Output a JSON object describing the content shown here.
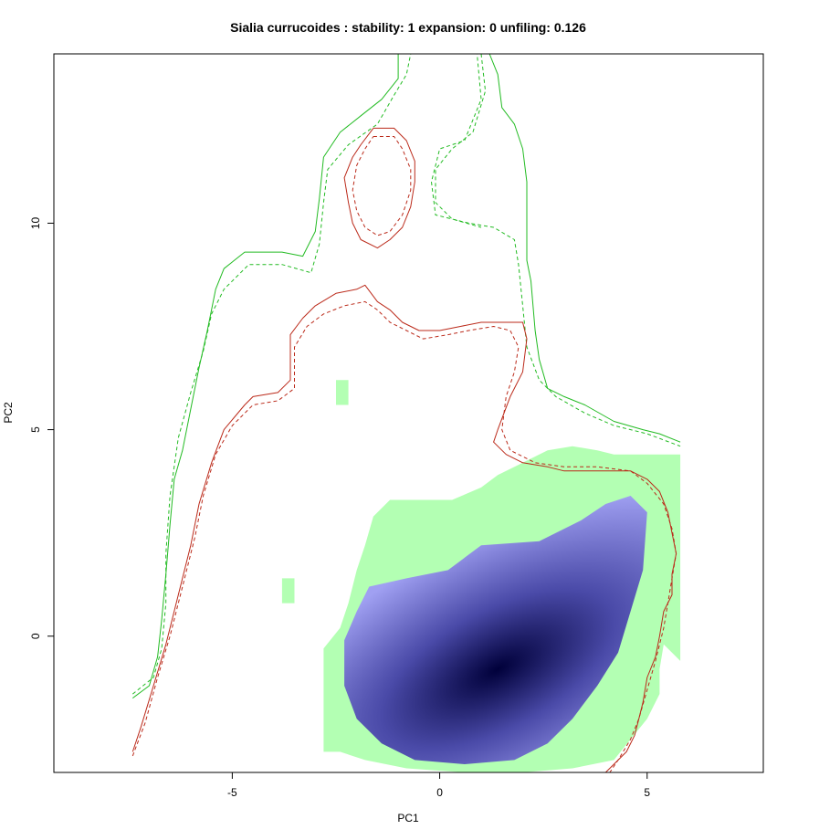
{
  "chart_data": {
    "type": "heatmap",
    "title": "Sialia currucoides : stability: 1 expansion: 0 unfiling: 0.126",
    "xlabel": "PC1",
    "ylabel": "PC2",
    "xlim": [
      -9.3,
      7.8
    ],
    "ylim": [
      -3.3,
      14.1
    ],
    "xticks": [
      -5,
      0,
      5
    ],
    "yticks": [
      0,
      5,
      10
    ],
    "xtick_labels": [
      "-5",
      "0",
      "5"
    ],
    "ytick_labels": [
      "0",
      "5",
      "10"
    ],
    "grid": false,
    "legend": "none",
    "colors": {
      "stability_fill": "#b3ffb3",
      "density_light": "#a0a0f2",
      "density_dark": "#00003a",
      "green_contour": "#22bb22",
      "red_contour": "#bb2a1a"
    },
    "density_peak": {
      "x": 1.4,
      "y": -0.8
    },
    "series": [
      {
        "kind": "stability_region",
        "polygon": [
          [
            -2.8,
            -2.8
          ],
          [
            -2.8,
            -0.3
          ],
          [
            -2.4,
            0.2
          ],
          [
            -2.2,
            0.8
          ],
          [
            -2.0,
            1.6
          ],
          [
            -1.8,
            2.2
          ],
          [
            -1.6,
            2.9
          ],
          [
            -1.2,
            3.3
          ],
          [
            0.3,
            3.3
          ],
          [
            1.0,
            3.6
          ],
          [
            1.4,
            3.9
          ],
          [
            2.0,
            4.2
          ],
          [
            2.6,
            4.5
          ],
          [
            3.2,
            4.6
          ],
          [
            3.8,
            4.5
          ],
          [
            4.2,
            4.4
          ],
          [
            4.6,
            4.4
          ],
          [
            5.2,
            4.4
          ],
          [
            5.8,
            4.4
          ],
          [
            5.8,
            -0.6
          ],
          [
            5.4,
            -0.2
          ],
          [
            5.3,
            -0.8
          ],
          [
            5.3,
            -1.4
          ],
          [
            5.0,
            -2.0
          ],
          [
            4.6,
            -2.5
          ],
          [
            4.2,
            -3.0
          ],
          [
            3.2,
            -3.2
          ],
          [
            2.0,
            -3.3
          ],
          [
            0.6,
            -3.3
          ],
          [
            -0.8,
            -3.2
          ],
          [
            -1.8,
            -3.0
          ],
          [
            -2.4,
            -2.8
          ]
        ]
      },
      {
        "kind": "stability_patch",
        "polygon": [
          [
            -2.5,
            6.2
          ],
          [
            -2.2,
            6.2
          ],
          [
            -2.2,
            5.6
          ],
          [
            -2.5,
            5.6
          ]
        ]
      },
      {
        "kind": "stability_patch",
        "polygon": [
          [
            -3.8,
            1.4
          ],
          [
            -3.5,
            1.4
          ],
          [
            -3.5,
            0.8
          ],
          [
            -3.8,
            0.8
          ]
        ]
      },
      {
        "kind": "density",
        "polygon": [
          [
            -2.3,
            -1.2
          ],
          [
            -2.3,
            -0.1
          ],
          [
            -2.0,
            0.6
          ],
          [
            -1.7,
            1.2
          ],
          [
            -0.8,
            1.4
          ],
          [
            0.2,
            1.6
          ],
          [
            1.0,
            2.2
          ],
          [
            2.4,
            2.3
          ],
          [
            3.4,
            2.8
          ],
          [
            4.0,
            3.2
          ],
          [
            4.6,
            3.4
          ],
          [
            5.0,
            3.0
          ],
          [
            4.9,
            1.6
          ],
          [
            4.6,
            0.6
          ],
          [
            4.3,
            -0.4
          ],
          [
            3.8,
            -1.2
          ],
          [
            3.2,
            -2.0
          ],
          [
            2.6,
            -2.6
          ],
          [
            1.8,
            -3.0
          ],
          [
            0.6,
            -3.1
          ],
          [
            -0.6,
            -3.0
          ],
          [
            -1.4,
            -2.6
          ],
          [
            -2.0,
            -2.0
          ]
        ]
      },
      {
        "kind": "green_solid",
        "path": [
          [
            -7.4,
            -1.5
          ],
          [
            -7.0,
            -1.2
          ],
          [
            -6.8,
            -0.5
          ],
          [
            -6.7,
            0.4
          ],
          [
            -6.6,
            1.5
          ],
          [
            -6.5,
            2.7
          ],
          [
            -6.4,
            3.8
          ],
          [
            -6.2,
            4.5
          ],
          [
            -6.0,
            5.5
          ],
          [
            -5.8,
            6.5
          ],
          [
            -5.6,
            7.4
          ],
          [
            -5.4,
            8.4
          ],
          [
            -5.2,
            8.9
          ],
          [
            -4.7,
            9.3
          ],
          [
            -3.8,
            9.3
          ],
          [
            -3.3,
            9.2
          ],
          [
            -3.0,
            9.8
          ],
          [
            -2.9,
            10.6
          ],
          [
            -2.8,
            11.6
          ],
          [
            -2.4,
            12.2
          ],
          [
            -1.9,
            12.6
          ],
          [
            -1.4,
            13.0
          ],
          [
            -1.0,
            13.5
          ],
          [
            -1.0,
            14.1
          ],
          [
            1.2,
            14.1
          ],
          [
            1.4,
            13.6
          ],
          [
            1.5,
            12.8
          ],
          [
            1.8,
            12.4
          ],
          [
            2.0,
            11.8
          ],
          [
            2.1,
            11.0
          ],
          [
            2.1,
            10.0
          ],
          [
            2.1,
            9.1
          ],
          [
            2.2,
            8.6
          ],
          [
            2.3,
            7.4
          ],
          [
            2.4,
            6.7
          ],
          [
            2.6,
            6.0
          ],
          [
            3.0,
            5.8
          ],
          [
            3.5,
            5.6
          ],
          [
            4.2,
            5.2
          ],
          [
            4.9,
            5.0
          ],
          [
            5.3,
            4.9
          ],
          [
            5.8,
            4.7
          ]
        ]
      },
      {
        "kind": "green_dashed",
        "path": [
          [
            -7.4,
            -1.4
          ],
          [
            -6.9,
            -1.0
          ],
          [
            -6.7,
            -0.3
          ],
          [
            -6.6,
            0.8
          ],
          [
            -6.6,
            2.0
          ],
          [
            -6.5,
            3.4
          ],
          [
            -6.3,
            4.8
          ],
          [
            -6.0,
            5.9
          ],
          [
            -5.7,
            6.9
          ],
          [
            -5.5,
            7.8
          ],
          [
            -5.2,
            8.4
          ],
          [
            -4.6,
            9.0
          ],
          [
            -3.8,
            9.0
          ],
          [
            -3.1,
            8.8
          ],
          [
            -2.9,
            9.5
          ],
          [
            -2.8,
            10.5
          ],
          [
            -2.7,
            11.3
          ],
          [
            -2.2,
            11.9
          ],
          [
            -1.5,
            12.4
          ],
          [
            -1.1,
            13.1
          ],
          [
            -0.8,
            13.6
          ],
          [
            -0.7,
            14.1
          ],
          [
            0.9,
            14.1
          ],
          [
            1.0,
            13.0
          ],
          [
            0.6,
            12.0
          ],
          [
            0.0,
            11.8
          ],
          [
            -0.2,
            11.0
          ],
          [
            -0.1,
            10.2
          ],
          [
            0.7,
            10.0
          ],
          [
            1.3,
            9.9
          ],
          [
            1.8,
            9.6
          ],
          [
            1.9,
            9.0
          ],
          [
            2.0,
            8.0
          ],
          [
            2.1,
            7.0
          ],
          [
            2.4,
            6.2
          ],
          [
            2.8,
            5.8
          ],
          [
            3.5,
            5.4
          ],
          [
            4.2,
            5.1
          ],
          [
            5.0,
            4.9
          ],
          [
            5.8,
            4.6
          ]
        ]
      },
      {
        "kind": "green_dashed",
        "path": [
          [
            1.0,
            14.1
          ],
          [
            1.1,
            13.2
          ],
          [
            0.8,
            12.2
          ],
          [
            0.3,
            11.8
          ],
          [
            -0.1,
            11.3
          ],
          [
            -0.1,
            10.5
          ],
          [
            0.3,
            10.1
          ],
          [
            1.0,
            9.9
          ]
        ]
      },
      {
        "kind": "red_solid",
        "path": [
          [
            -7.4,
            -2.8
          ],
          [
            -7.2,
            -2.2
          ],
          [
            -6.9,
            -1.2
          ],
          [
            -6.6,
            -0.2
          ],
          [
            -6.3,
            1.0
          ],
          [
            -6.0,
            2.2
          ],
          [
            -5.8,
            3.2
          ],
          [
            -5.5,
            4.2
          ],
          [
            -5.2,
            5.0
          ],
          [
            -4.7,
            5.6
          ],
          [
            -4.5,
            5.8
          ],
          [
            -3.9,
            5.9
          ],
          [
            -3.6,
            6.2
          ],
          [
            -3.6,
            7.3
          ],
          [
            -3.3,
            7.7
          ],
          [
            -3.0,
            8.0
          ],
          [
            -2.5,
            8.3
          ],
          [
            -2.0,
            8.4
          ],
          [
            -1.8,
            8.5
          ],
          [
            -1.5,
            8.1
          ],
          [
            -1.2,
            7.9
          ],
          [
            -0.9,
            7.6
          ],
          [
            -0.5,
            7.4
          ],
          [
            0.0,
            7.4
          ],
          [
            0.5,
            7.5
          ],
          [
            1.0,
            7.6
          ],
          [
            1.6,
            7.6
          ],
          [
            2.0,
            7.6
          ],
          [
            2.1,
            7.2
          ],
          [
            2.0,
            6.4
          ],
          [
            1.7,
            5.8
          ],
          [
            1.4,
            5.0
          ],
          [
            1.3,
            4.7
          ],
          [
            1.6,
            4.4
          ],
          [
            2.0,
            4.2
          ],
          [
            2.6,
            4.1
          ],
          [
            3.0,
            4.0
          ],
          [
            3.8,
            4.0
          ],
          [
            4.6,
            4.0
          ],
          [
            5.0,
            3.8
          ],
          [
            5.3,
            3.5
          ],
          [
            5.5,
            3.0
          ],
          [
            5.6,
            2.5
          ],
          [
            5.7,
            2.0
          ],
          [
            5.6,
            1.5
          ],
          [
            5.6,
            1.0
          ],
          [
            5.4,
            0.6
          ],
          [
            5.3,
            0.0
          ],
          [
            5.2,
            -0.5
          ],
          [
            5.0,
            -1.0
          ],
          [
            4.9,
            -1.6
          ],
          [
            4.8,
            -2.0
          ],
          [
            4.7,
            -2.4
          ],
          [
            4.5,
            -2.8
          ],
          [
            4.2,
            -3.1
          ],
          [
            4.0,
            -3.3
          ]
        ]
      },
      {
        "kind": "red_dashed",
        "path": [
          [
            -7.4,
            -2.9
          ],
          [
            -7.1,
            -2.1
          ],
          [
            -6.8,
            -1.0
          ],
          [
            -6.5,
            0.0
          ],
          [
            -6.2,
            1.2
          ],
          [
            -5.9,
            2.4
          ],
          [
            -5.7,
            3.4
          ],
          [
            -5.4,
            4.4
          ],
          [
            -5.0,
            5.1
          ],
          [
            -4.5,
            5.6
          ],
          [
            -3.9,
            5.7
          ],
          [
            -3.5,
            6.0
          ],
          [
            -3.5,
            7.0
          ],
          [
            -3.2,
            7.5
          ],
          [
            -2.8,
            7.8
          ],
          [
            -2.3,
            8.0
          ],
          [
            -1.8,
            8.1
          ],
          [
            -1.5,
            7.9
          ],
          [
            -1.2,
            7.6
          ],
          [
            -0.8,
            7.4
          ],
          [
            -0.4,
            7.2
          ],
          [
            0.2,
            7.3
          ],
          [
            0.7,
            7.4
          ],
          [
            1.3,
            7.5
          ],
          [
            1.7,
            7.4
          ],
          [
            1.9,
            7.0
          ],
          [
            1.8,
            6.4
          ],
          [
            1.6,
            5.8
          ],
          [
            1.5,
            5.0
          ],
          [
            1.7,
            4.5
          ],
          [
            2.3,
            4.2
          ],
          [
            3.0,
            4.1
          ],
          [
            3.8,
            4.1
          ],
          [
            4.6,
            4.0
          ],
          [
            5.0,
            3.7
          ],
          [
            5.4,
            3.2
          ],
          [
            5.6,
            2.6
          ],
          [
            5.7,
            2.0
          ],
          [
            5.6,
            1.4
          ],
          [
            5.5,
            0.8
          ],
          [
            5.4,
            0.2
          ],
          [
            5.2,
            -0.6
          ],
          [
            5.0,
            -1.3
          ],
          [
            4.8,
            -2.0
          ],
          [
            4.6,
            -2.5
          ],
          [
            4.3,
            -3.0
          ],
          [
            4.1,
            -3.3
          ]
        ]
      },
      {
        "kind": "red_solid",
        "path": [
          [
            -1.6,
            12.3
          ],
          [
            -1.1,
            12.3
          ],
          [
            -0.8,
            12.0
          ],
          [
            -0.6,
            11.5
          ],
          [
            -0.6,
            11.0
          ],
          [
            -0.7,
            10.4
          ],
          [
            -0.9,
            9.9
          ],
          [
            -1.2,
            9.6
          ],
          [
            -1.5,
            9.4
          ],
          [
            -1.9,
            9.6
          ],
          [
            -2.1,
            10.0
          ],
          [
            -2.2,
            10.5
          ],
          [
            -2.3,
            11.1
          ],
          [
            -2.1,
            11.6
          ],
          [
            -1.9,
            11.9
          ],
          [
            -1.6,
            12.3
          ]
        ]
      },
      {
        "kind": "red_dashed",
        "path": [
          [
            -1.6,
            12.1
          ],
          [
            -1.1,
            12.1
          ],
          [
            -0.9,
            11.8
          ],
          [
            -0.7,
            11.3
          ],
          [
            -0.7,
            10.8
          ],
          [
            -0.9,
            10.2
          ],
          [
            -1.2,
            9.8
          ],
          [
            -1.5,
            9.7
          ],
          [
            -1.8,
            9.9
          ],
          [
            -2.0,
            10.3
          ],
          [
            -2.1,
            10.8
          ],
          [
            -2.0,
            11.4
          ],
          [
            -1.8,
            11.8
          ],
          [
            -1.6,
            12.1
          ]
        ]
      }
    ]
  }
}
